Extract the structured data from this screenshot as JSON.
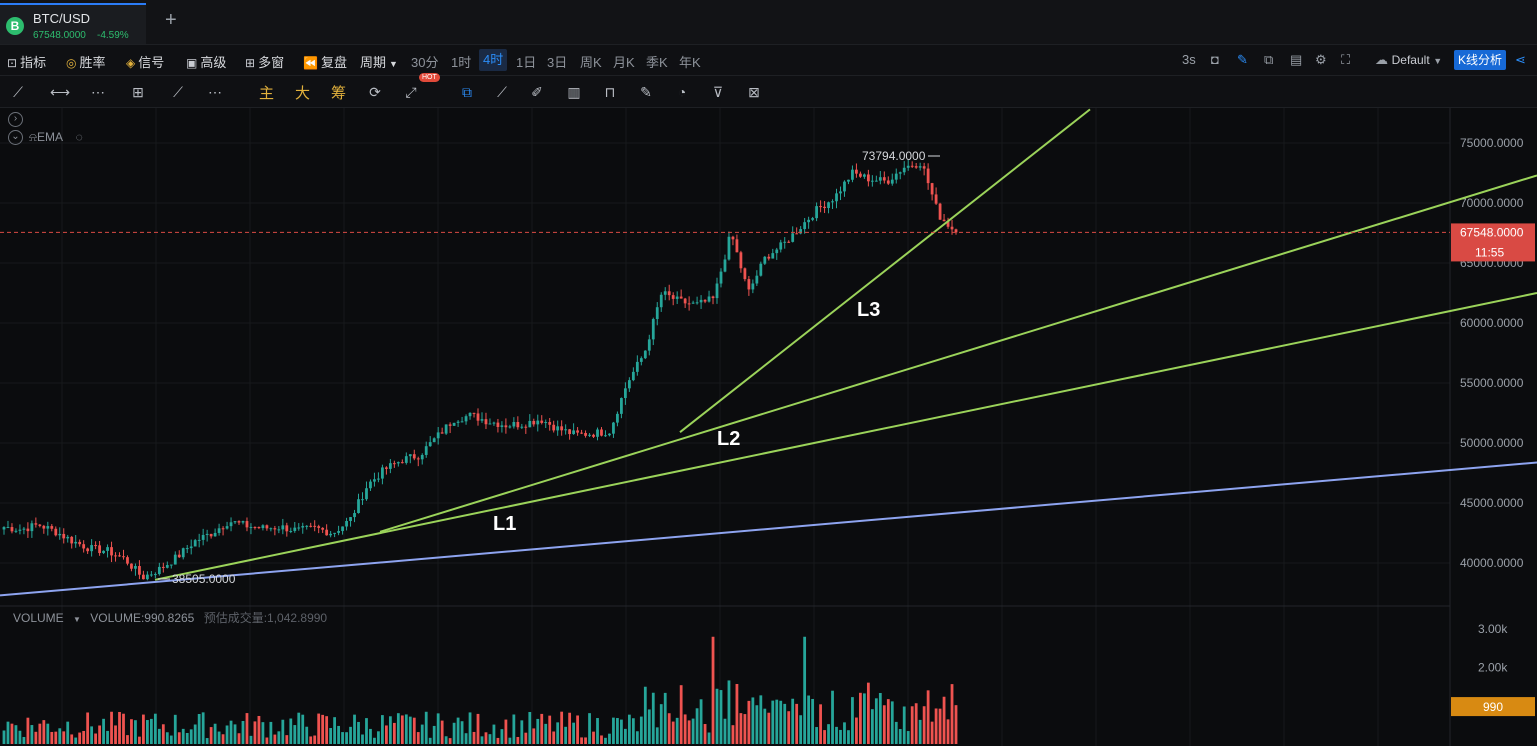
{
  "tab": {
    "title": "BTC/USD",
    "price": "67548.0000",
    "change": "-4.59%",
    "coin_letter": "B",
    "add_symbol": "+"
  },
  "toolbar": {
    "indicators": "指标",
    "win_rate": "胜率",
    "signals": "信号",
    "advanced": "高级",
    "multi_window": "多窗",
    "replay": "复盘",
    "period": "周期",
    "periods": [
      "30分",
      "1时",
      "4时",
      "1日",
      "3日",
      "周K",
      "月K",
      "季K",
      "年K"
    ],
    "active_period": "4时",
    "refresh": "3s",
    "layout": "Default",
    "analysis_button": "K线分析"
  },
  "drawing_tools": {
    "main": "主",
    "big": "大",
    "chips": "筹",
    "hot_badge": "HOT"
  },
  "indicator_legend": {
    "ema": "EMA"
  },
  "volume_legend": {
    "label": "VOLUME",
    "value": "VOLUME:990.8265",
    "estimate": "预估成交量:1,042.8990",
    "current_badge": "990"
  },
  "colors": {
    "up": "#26a69a",
    "down": "#ef5350",
    "trendline": "#9bd35a",
    "support": "#8ea4f0",
    "accent": "#2b8cf6",
    "price_badge": "#d94a44",
    "volume_badge": "#d88a12"
  },
  "chart_data": {
    "type": "candlestick",
    "symbol": "BTC/USD",
    "interval": "4时",
    "ylim": [
      37000,
      77000
    ],
    "y_ticks": [
      "40000.0000",
      "45000.0000",
      "50000.0000",
      "55000.0000",
      "60000.0000",
      "65000.0000",
      "70000.0000",
      "75000.0000"
    ],
    "current_price": "67548.0000",
    "countdown": "11:55",
    "high_label": "73794.0000",
    "low_label": "38505.0000",
    "annotations": [
      "L1",
      "L2",
      "L3"
    ],
    "close_path": [
      43000,
      42800,
      43200,
      42600,
      41800,
      41200,
      41000,
      40300,
      38800,
      39500,
      40500,
      41800,
      42500,
      43500,
      43100,
      42900,
      43000,
      42700,
      42900,
      42500,
      43600,
      46500,
      47800,
      48600,
      49000,
      50500,
      52000,
      52300,
      51800,
      51500,
      51600,
      52000,
      51200,
      50700,
      50800,
      51000,
      55000,
      57500,
      62500,
      61800,
      61500,
      62000,
      67500,
      62500,
      65500,
      66500,
      68000,
      69500,
      70500,
      72500,
      72000,
      71800,
      73000,
      73400,
      69000,
      67548
    ],
    "volume_ylim": [
      0,
      3300
    ],
    "volume_ticks": [
      "2.00k",
      "3.00k"
    ],
    "volume_current": 990
  }
}
